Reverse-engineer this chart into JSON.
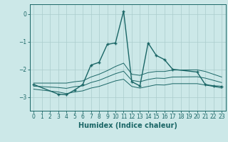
{
  "xlabel": "Humidex (Indice chaleur)",
  "background_color": "#cce8e8",
  "grid_color": "#aacccc",
  "line_color": "#1a6666",
  "xlim": [
    -0.5,
    23.5
  ],
  "ylim": [
    -3.5,
    0.35
  ],
  "yticks": [
    0,
    -1,
    -2,
    -3
  ],
  "xticks": [
    0,
    1,
    2,
    3,
    4,
    5,
    6,
    7,
    8,
    9,
    10,
    11,
    12,
    13,
    14,
    15,
    16,
    17,
    18,
    19,
    20,
    21,
    22,
    23
  ],
  "series": {
    "main": {
      "x": [
        0,
        3,
        4,
        5,
        6,
        7,
        8,
        9,
        10,
        11,
        12,
        13,
        14,
        15,
        16,
        17,
        20,
        21,
        22,
        23
      ],
      "y": [
        -2.55,
        -2.9,
        -2.92,
        -2.75,
        -2.55,
        -1.85,
        -1.75,
        -1.1,
        -1.05,
        0.1,
        -2.45,
        -2.6,
        -1.05,
        -1.5,
        -1.65,
        -2.0,
        -2.1,
        -2.55,
        -2.6,
        -2.62
      ]
    },
    "upper": {
      "x": [
        0,
        3,
        4,
        5,
        6,
        7,
        8,
        9,
        10,
        11,
        12,
        13,
        14,
        15,
        16,
        17,
        20,
        21,
        22,
        23
      ],
      "y": [
        -2.5,
        -2.5,
        -2.5,
        -2.45,
        -2.42,
        -2.28,
        -2.18,
        -2.05,
        -1.9,
        -1.78,
        -2.18,
        -2.22,
        -2.12,
        -2.08,
        -2.08,
        -2.03,
        -2.02,
        -2.08,
        -2.18,
        -2.28
      ]
    },
    "lower": {
      "x": [
        0,
        3,
        4,
        5,
        6,
        7,
        8,
        9,
        10,
        11,
        12,
        13,
        14,
        15,
        16,
        17,
        20,
        21,
        22,
        23
      ],
      "y": [
        -2.72,
        -2.82,
        -2.88,
        -2.82,
        -2.78,
        -2.68,
        -2.62,
        -2.52,
        -2.42,
        -2.36,
        -2.62,
        -2.68,
        -2.62,
        -2.56,
        -2.57,
        -2.52,
        -2.52,
        -2.57,
        -2.62,
        -2.68
      ]
    },
    "mid": {
      "x": [
        0,
        3,
        4,
        5,
        6,
        7,
        8,
        9,
        10,
        11,
        12,
        13,
        14,
        15,
        16,
        17,
        20,
        21,
        22,
        23
      ],
      "y": [
        -2.61,
        -2.66,
        -2.69,
        -2.63,
        -2.6,
        -2.48,
        -2.4,
        -2.28,
        -2.16,
        -2.07,
        -2.4,
        -2.45,
        -2.37,
        -2.32,
        -2.33,
        -2.28,
        -2.27,
        -2.32,
        -2.4,
        -2.48
      ]
    }
  }
}
